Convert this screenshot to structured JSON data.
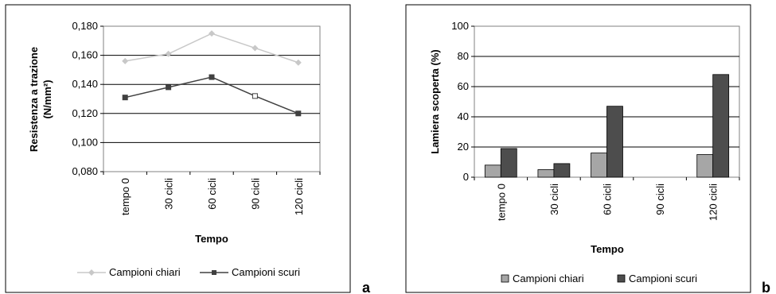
{
  "chart_data": [
    {
      "type": "line",
      "panel_label": "a",
      "categories": [
        "tempo 0",
        "30 cicli",
        "60 cicli",
        "90 cicli",
        "120 cicli"
      ],
      "ylabel_line1": "Resistenza a trazione",
      "ylabel_line2": "(N/mm²)",
      "xlabel": "Tempo",
      "ylim": [
        0.08,
        0.18
      ],
      "yticks": [
        "0,080",
        "0,100",
        "0,120",
        "0,140",
        "0,160",
        "0,180"
      ],
      "ytick_values": [
        0.08,
        0.1,
        0.12,
        0.14,
        0.16,
        0.18
      ],
      "grid": true,
      "legend_position": "bottom",
      "series": [
        {
          "name": "Campioni chiari",
          "values": [
            0.156,
            0.161,
            0.175,
            0.165,
            0.155
          ],
          "color": "#c8c8c8",
          "marker": "diamond"
        },
        {
          "name": "Campioni scuri",
          "values": [
            0.131,
            0.138,
            0.145,
            0.132,
            0.12
          ],
          "color": "#404040",
          "marker": "square"
        }
      ]
    },
    {
      "type": "bar",
      "panel_label": "b",
      "categories": [
        "tempo 0",
        "30 cicli",
        "60 cicli",
        "90 cicli",
        "120 cicli"
      ],
      "ylabel": "Lamiera scoperta (%)",
      "xlabel": "Tempo",
      "ylim": [
        0,
        100
      ],
      "yticks": [
        "0",
        "20",
        "40",
        "60",
        "80",
        "100"
      ],
      "ytick_values": [
        0,
        20,
        40,
        60,
        80,
        100
      ],
      "grid": true,
      "legend_position": "bottom",
      "series": [
        {
          "name": "Campioni chiari",
          "values": [
            8,
            5,
            16,
            0,
            15
          ],
          "color": "#a6a6a6"
        },
        {
          "name": "Campioni scuri",
          "values": [
            19,
            9,
            47,
            0,
            68
          ],
          "color": "#4d4d4d"
        }
      ]
    }
  ]
}
